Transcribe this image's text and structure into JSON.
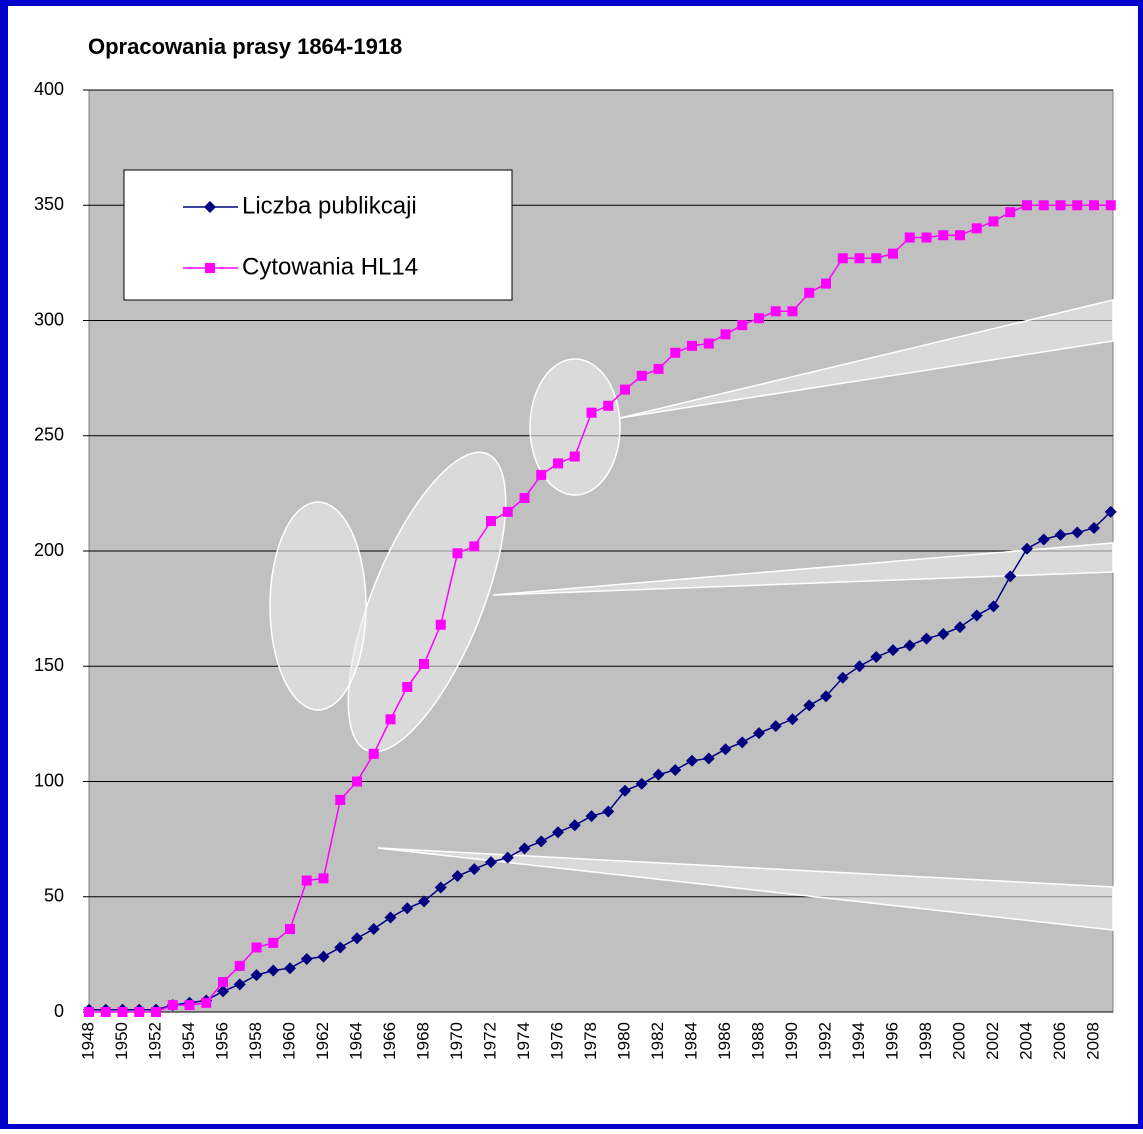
{
  "chart_data": {
    "type": "line",
    "title": "Opracowania prasy 1864-1918",
    "categories": [
      "1948",
      null,
      "1950",
      null,
      "1952",
      null,
      "1954",
      null,
      "1956",
      null,
      "1958",
      null,
      "1960",
      null,
      "1962",
      null,
      "1964",
      null,
      "1966",
      null,
      "1968",
      null,
      "1970",
      null,
      "1972",
      null,
      "1974",
      null,
      "1976",
      null,
      "1978",
      null,
      "1980",
      null,
      "1982",
      null,
      "1984",
      null,
      "1986",
      null,
      "1988",
      null,
      "1990",
      null,
      "1992",
      null,
      "1994",
      null,
      "1996",
      null,
      "1998",
      null,
      "2000",
      null,
      "2002",
      null,
      "2004",
      null,
      "2006",
      null,
      "2008",
      null
    ],
    "series": [
      {
        "name": "Liczba publikcaji",
        "color": "#000080",
        "marker": "diamond",
        "values": [
          1,
          1,
          1,
          1,
          1,
          3,
          4,
          5,
          9,
          12,
          16,
          18,
          19,
          23,
          24,
          28,
          32,
          36,
          41,
          45,
          48,
          54,
          59,
          62,
          65,
          67,
          71,
          74,
          78,
          81,
          85,
          87,
          96,
          99,
          103,
          105,
          109,
          110,
          114,
          117,
          121,
          124,
          127,
          133,
          137,
          145,
          150,
          154,
          157,
          159,
          162,
          164,
          167,
          172,
          176,
          189,
          201,
          205,
          207,
          208,
          210,
          217
        ]
      },
      {
        "name": "Cytowania HL14",
        "color": "#ff00ff",
        "marker": "square",
        "values": [
          0,
          0,
          0,
          0,
          0,
          3,
          3,
          4,
          13,
          20,
          28,
          30,
          36,
          57,
          58,
          92,
          100,
          112,
          127,
          141,
          151,
          168,
          199,
          202,
          213,
          217,
          223,
          233,
          238,
          241,
          260,
          263,
          270,
          276,
          279,
          286,
          289,
          290,
          294,
          298,
          301,
          304,
          304,
          312,
          316,
          327,
          327,
          327,
          329,
          336,
          336,
          337,
          337,
          340,
          343,
          347,
          350,
          350,
          350,
          350,
          350,
          350
        ]
      }
    ],
    "ylim": [
      0,
      400
    ],
    "yticks": [
      0,
      50,
      100,
      150,
      200,
      250,
      300,
      350,
      400
    ],
    "grid": true
  }
}
